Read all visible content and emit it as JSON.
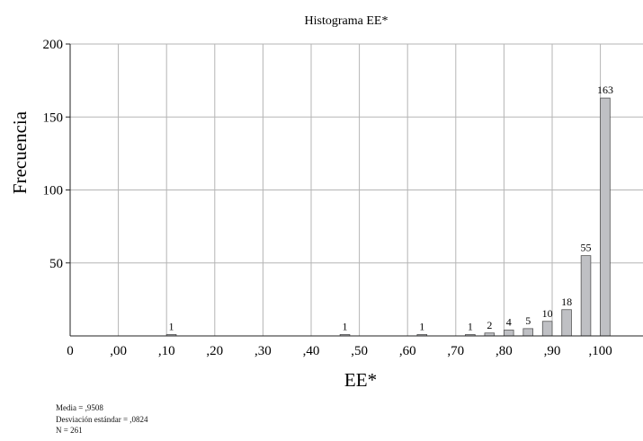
{
  "chart_data": {
    "type": "bar",
    "title": "Histograma EE*",
    "xlabel": "EE*",
    "ylabel": "Frecuencia",
    "ylim": [
      0,
      200
    ],
    "yticks": [
      50,
      100,
      150,
      200
    ],
    "xticks": [
      "0",
      ",00",
      ",10",
      ",20",
      ",30",
      ",40",
      ",50",
      ",60",
      ",70",
      ",80",
      ",90",
      ",100"
    ],
    "grid": true,
    "bin_width": 0.02,
    "bins": [
      {
        "x": 0.11,
        "value": 1,
        "label": "1"
      },
      {
        "x": 0.47,
        "value": 1,
        "label": "1"
      },
      {
        "x": 0.63,
        "value": 1,
        "label": "1"
      },
      {
        "x": 0.73,
        "value": 1,
        "label": "1"
      },
      {
        "x": 0.77,
        "value": 2,
        "label": "2"
      },
      {
        "x": 0.81,
        "value": 4,
        "label": "4"
      },
      {
        "x": 0.85,
        "value": 5,
        "label": "5"
      },
      {
        "x": 0.89,
        "value": 10,
        "label": "10"
      },
      {
        "x": 0.93,
        "value": 18,
        "label": "18"
      },
      {
        "x": 0.97,
        "value": 55,
        "label": "55"
      },
      {
        "x": 1.01,
        "value": 163,
        "label": "163"
      }
    ],
    "colors": {
      "bar_fill": "#bfc0c4",
      "bar_stroke": "#555555",
      "grid": "#b5b5b5",
      "axis": "#222222"
    }
  },
  "stats": {
    "mean": "Media = ,9508",
    "std": "Desviación estándar = ,0824",
    "n": "N = 261"
  }
}
